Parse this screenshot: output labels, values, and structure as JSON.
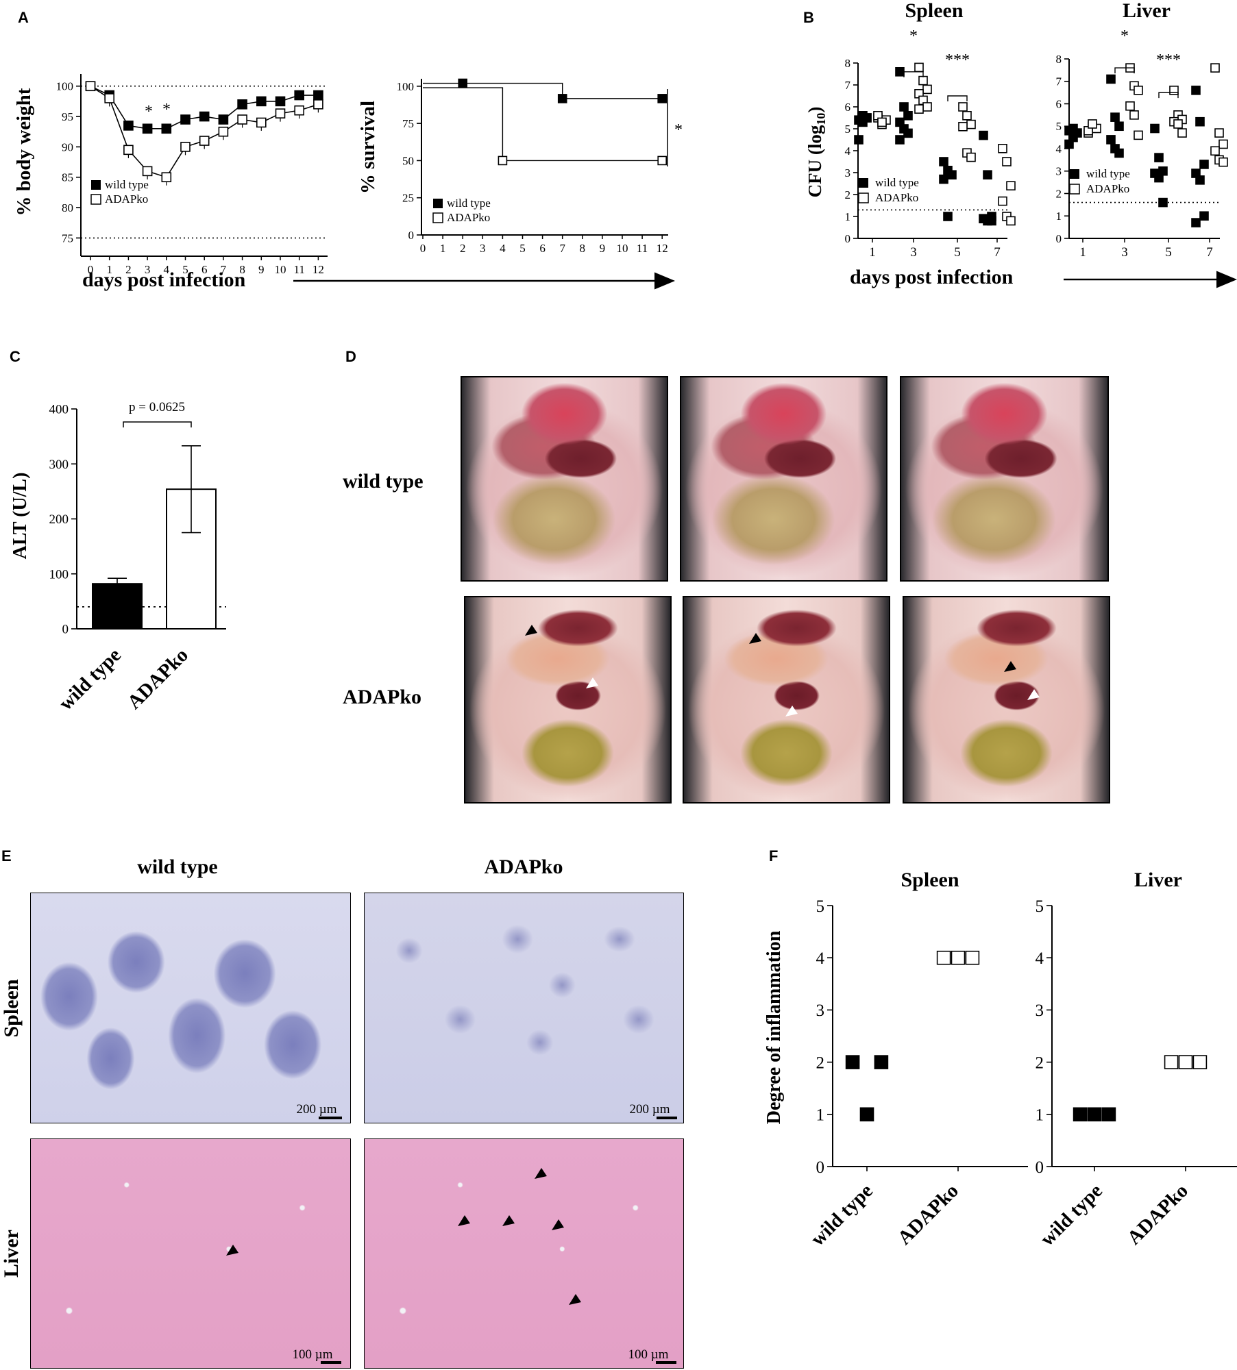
{
  "panels": {
    "A": {
      "letter": "A",
      "weight": {
        "ylabel": "% body weight",
        "yticks": [
          "100",
          "95",
          "90",
          "85",
          "80",
          "75"
        ],
        "xticks": [
          "0",
          "1",
          "2",
          "3",
          "4",
          "5",
          "6",
          "7",
          "8",
          "9",
          "10",
          "11",
          "12"
        ],
        "legend": [
          "wild type",
          "ADAPko"
        ],
        "sig": [
          "*",
          "*"
        ]
      },
      "survival": {
        "ylabel": "% survival",
        "yticks": [
          "100",
          "75",
          "50",
          "25",
          "0"
        ],
        "xticks": [
          "0",
          "1",
          "2",
          "3",
          "4",
          "5",
          "6",
          "7",
          "8",
          "9",
          "10",
          "11",
          "12"
        ],
        "legend": [
          "wild type",
          "ADAPko"
        ],
        "sig": "*"
      },
      "xlabel": "days post infection"
    },
    "B": {
      "letter": "B",
      "spleen_title": "Spleen",
      "liver_title": "Liver",
      "ylabel_main": "CFU (log",
      "ylabel_sub": "10",
      "ylabel_close": ")",
      "yticks": [
        "8",
        "7",
        "6",
        "5",
        "4",
        "3",
        "2",
        "1",
        "0"
      ],
      "xticks": [
        "1",
        "3",
        "5",
        "7"
      ],
      "legend": [
        "wild type",
        "ADAPko"
      ],
      "sig_spleen": [
        "*",
        "***"
      ],
      "sig_liver": [
        "*",
        "***"
      ],
      "xlabel": "days post infection"
    },
    "C": {
      "letter": "C",
      "ylabel": "ALT (U/L)",
      "yticks": [
        "400",
        "300",
        "200",
        "100",
        "0"
      ],
      "pvalue": "p = 0.0625",
      "categories": [
        "wild type",
        "ADAPko"
      ]
    },
    "D": {
      "letter": "D",
      "row_labels": [
        "wild type",
        "ADAPko"
      ]
    },
    "E": {
      "letter": "E",
      "col_labels": [
        "wild type",
        "ADAPko"
      ],
      "row_labels": [
        "Spleen",
        "Liver"
      ],
      "scalebars": [
        "200 µm",
        "200 µm",
        "100 µm",
        "100 µm"
      ]
    },
    "F": {
      "letter": "F",
      "ylabel": "Degree of inflammation",
      "spleen_title": "Spleen",
      "liver_title": "Liver",
      "yticks": [
        "5",
        "4",
        "3",
        "2",
        "1",
        "0"
      ],
      "categories": [
        "wild type",
        "ADAPko"
      ]
    }
  },
  "chart_data": [
    {
      "type": "line",
      "panel": "A-weight",
      "ylabel": "% body weight",
      "xlabel": "days post infection",
      "ylim": [
        75,
        102
      ],
      "x": [
        0,
        1,
        2,
        3,
        4,
        5,
        6,
        7,
        8,
        9,
        10,
        11,
        12
      ],
      "reference_line": 75,
      "series": [
        {
          "name": "wild type",
          "marker": "filled-square",
          "values": [
            100,
            98.5,
            93.5,
            93,
            93,
            94.5,
            95,
            94.5,
            97,
            97.5,
            97.5,
            98.5,
            98.5
          ]
        },
        {
          "name": "ADAPko",
          "marker": "open-square",
          "values": [
            100,
            98,
            89.5,
            86,
            85,
            90,
            91,
            92.5,
            94.5,
            94,
            95.5,
            96,
            97
          ]
        }
      ]
    },
    {
      "type": "line",
      "panel": "A-survival",
      "ylabel": "% survival",
      "xlabel": "days post infection",
      "ylim": [
        0,
        100
      ],
      "step": true,
      "series": [
        {
          "name": "wild type",
          "marker": "filled-square",
          "x": [
            0,
            2,
            7,
            12
          ],
          "values": [
            100,
            100,
            91.7,
            91.7
          ]
        },
        {
          "name": "ADAPko",
          "marker": "open-square",
          "x": [
            0,
            4,
            12
          ],
          "values": [
            100,
            50,
            50
          ]
        }
      ]
    },
    {
      "type": "scatter",
      "panel": "B-Spleen",
      "title": "Spleen",
      "ylim": [
        0,
        8
      ],
      "categories": [
        "1",
        "3",
        "5",
        "7"
      ],
      "detection_limit": 1.3,
      "series": [
        {
          "name": "wild type",
          "marker": "filled-square",
          "points": [
            [
              1,
              4.5
            ],
            [
              1,
              5.6
            ],
            [
              1,
              5.5
            ],
            [
              1,
              5.4
            ],
            [
              1,
              5.3
            ],
            [
              1,
              5.5
            ],
            [
              3,
              7.6
            ],
            [
              3,
              6
            ],
            [
              3,
              5.6
            ],
            [
              3,
              5.3
            ],
            [
              3,
              5
            ],
            [
              3,
              4.8
            ],
            [
              3,
              4.5
            ],
            [
              5,
              3.5
            ],
            [
              5,
              3.1
            ],
            [
              5,
              2.9
            ],
            [
              5,
              2.7
            ],
            [
              5,
              1
            ],
            [
              7,
              4.7
            ],
            [
              7,
              2.9
            ],
            [
              7,
              1
            ],
            [
              7,
              0.9
            ],
            [
              7,
              0.8
            ],
            [
              7,
              0.8
            ]
          ]
        },
        {
          "name": "ADAPko",
          "marker": "open-square",
          "points": [
            [
              1,
              5.5
            ],
            [
              1,
              5.2
            ],
            [
              1,
              5.4
            ],
            [
              1,
              5.6
            ],
            [
              1,
              5.3
            ],
            [
              3,
              7.8
            ],
            [
              3,
              7.2
            ],
            [
              3,
              6.8
            ],
            [
              3,
              6.6
            ],
            [
              3,
              6.3
            ],
            [
              3,
              6
            ],
            [
              3,
              5.9
            ],
            [
              5,
              6
            ],
            [
              5,
              5.6
            ],
            [
              5,
              5.2
            ],
            [
              5,
              5.1
            ],
            [
              5,
              3.9
            ],
            [
              5,
              3.7
            ],
            [
              7,
              4.1
            ],
            [
              7,
              3.5
            ],
            [
              7,
              2.4
            ],
            [
              7,
              1.7
            ],
            [
              7,
              1
            ],
            [
              7,
              0.8
            ]
          ]
        }
      ]
    },
    {
      "type": "scatter",
      "panel": "B-Liver",
      "title": "Liver",
      "ylim": [
        0,
        8
      ],
      "categories": [
        "1",
        "3",
        "5",
        "7"
      ],
      "detection_limit": 1.6,
      "series": [
        {
          "name": "wild type",
          "marker": "filled-square",
          "points": [
            [
              1,
              4.2
            ],
            [
              1,
              4.5
            ],
            [
              1,
              4.7
            ],
            [
              1,
              4.8
            ],
            [
              1,
              4.9
            ],
            [
              3,
              7.1
            ],
            [
              3,
              5.4
            ],
            [
              3,
              5
            ],
            [
              3,
              4.4
            ],
            [
              3,
              4
            ],
            [
              3,
              3.8
            ],
            [
              5,
              4.9
            ],
            [
              5,
              3.6
            ],
            [
              5,
              3
            ],
            [
              5,
              2.9
            ],
            [
              5,
              2.7
            ],
            [
              5,
              1.6
            ],
            [
              7,
              6.6
            ],
            [
              7,
              5.2
            ],
            [
              7,
              3.3
            ],
            [
              7,
              2.9
            ],
            [
              7,
              2.6
            ],
            [
              7,
              1
            ],
            [
              7,
              0.7
            ]
          ]
        },
        {
          "name": "ADAPko",
          "marker": "open-square",
          "points": [
            [
              1,
              4.7
            ],
            [
              1,
              5
            ],
            [
              1,
              4.9
            ],
            [
              1,
              4.8
            ],
            [
              1,
              5.1
            ],
            [
              3,
              7.6
            ],
            [
              3,
              6.8
            ],
            [
              3,
              6.6
            ],
            [
              3,
              5.9
            ],
            [
              3,
              5.5
            ],
            [
              3,
              4.6
            ],
            [
              5,
              6.6
            ],
            [
              5,
              5.5
            ],
            [
              5,
              5.3
            ],
            [
              5,
              5.2
            ],
            [
              5,
              5.1
            ],
            [
              5,
              4.7
            ],
            [
              7,
              7.6
            ],
            [
              7,
              4.7
            ],
            [
              7,
              4.2
            ],
            [
              7,
              3.9
            ],
            [
              7,
              3.5
            ],
            [
              7,
              3.4
            ]
          ]
        }
      ]
    },
    {
      "type": "bar",
      "panel": "C",
      "ylabel": "ALT (U/L)",
      "ylim": [
        0,
        400
      ],
      "categories": [
        "wild type",
        "ADAPko"
      ],
      "values": [
        82,
        254
      ],
      "errors": [
        [
          82,
          92
        ],
        [
          175,
          333
        ]
      ],
      "reference_line": 40,
      "annotation": "p = 0.0625"
    },
    {
      "type": "scatter",
      "panel": "F-Spleen",
      "title": "Spleen",
      "ylabel": "Degree of inflammation",
      "ylim": [
        0,
        5
      ],
      "categories": [
        "wild type",
        "ADAPko"
      ],
      "series": [
        {
          "name": "wild type",
          "marker": "filled-square",
          "points": [
            [
              -0.22,
              2
            ],
            [
              0.22,
              2
            ],
            [
              0,
              1
            ]
          ]
        },
        {
          "name": "ADAPko",
          "marker": "open-square",
          "points": [
            [
              -0.22,
              4
            ],
            [
              0,
              4
            ],
            [
              0.22,
              4
            ]
          ]
        }
      ]
    },
    {
      "type": "scatter",
      "panel": "F-Liver",
      "title": "Liver",
      "ylim": [
        0,
        5
      ],
      "categories": [
        "wild type",
        "ADAPko"
      ],
      "series": [
        {
          "name": "wild type",
          "marker": "filled-square",
          "points": [
            [
              -0.22,
              1
            ],
            [
              0,
              1
            ],
            [
              0.22,
              1
            ]
          ]
        },
        {
          "name": "ADAPko",
          "marker": "open-square",
          "points": [
            [
              -0.22,
              2
            ],
            [
              0,
              2
            ],
            [
              0.22,
              2
            ]
          ]
        }
      ]
    }
  ]
}
